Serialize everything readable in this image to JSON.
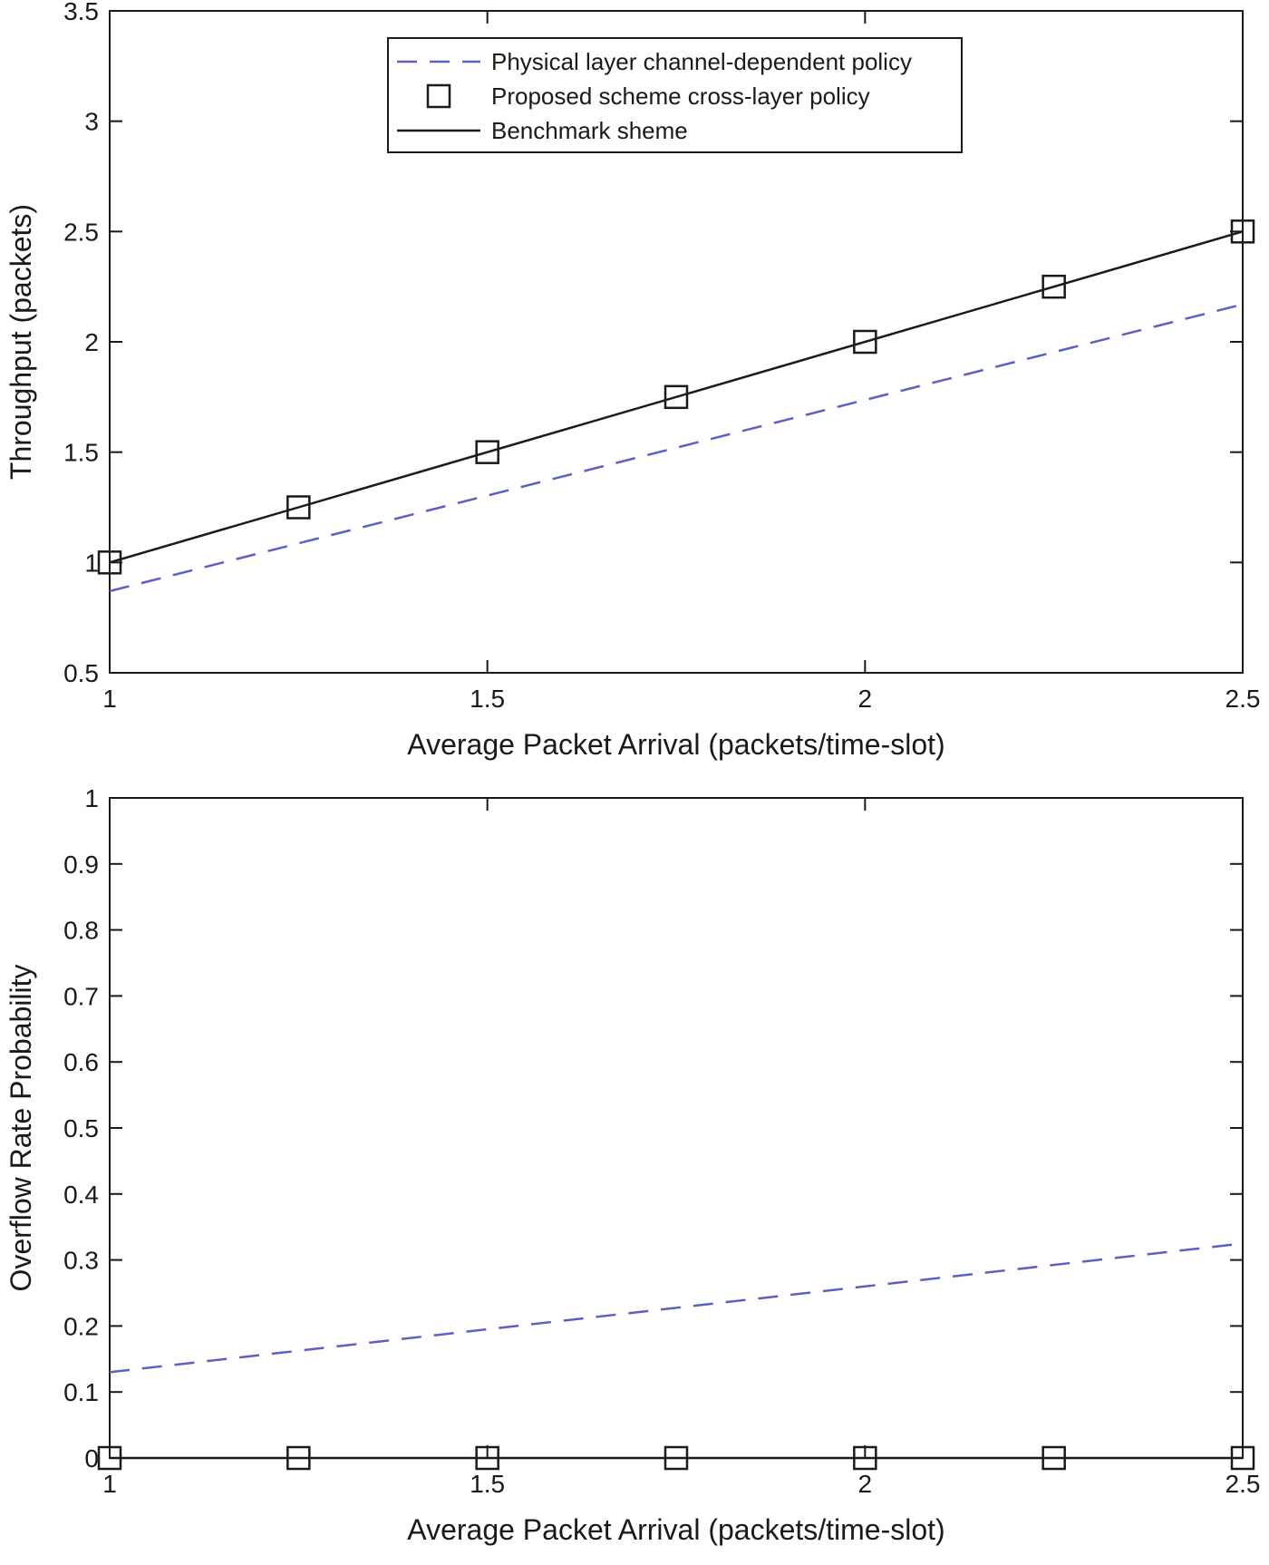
{
  "chart_data": [
    {
      "type": "line",
      "xlabel": "Average Packet Arrival (packets/time-slot)",
      "ylabel": "Throughput (packets)",
      "xlim": [
        1,
        2.5
      ],
      "ylim": [
        0.5,
        3.5
      ],
      "xticks": [
        1,
        1.5,
        2,
        2.5
      ],
      "xtick_labels": [
        "1",
        "1.5",
        "2",
        "2.5"
      ],
      "yticks": [
        0.5,
        1,
        1.5,
        2,
        2.5,
        3,
        3.5
      ],
      "ytick_labels": [
        "0.5",
        "1",
        "1.5",
        "2",
        "2.5",
        "3",
        "3.5"
      ],
      "grid": false,
      "legend_position": "top-center",
      "series": [
        {
          "name": "Physical layer channel-dependent policy",
          "style": "dashed",
          "color": "#5b5fc7",
          "x": [
            1,
            2.5
          ],
          "y": [
            0.87,
            2.17
          ]
        },
        {
          "name": "Proposed scheme cross-layer policy",
          "style": "marker-square",
          "color": "#1a1a1a",
          "x": [
            1,
            1.25,
            1.5,
            1.75,
            2,
            2.25,
            2.5
          ],
          "y": [
            1,
            1.25,
            1.5,
            1.75,
            2,
            2.25,
            2.5
          ]
        },
        {
          "name": "Benchmark sheme",
          "style": "solid",
          "color": "#1a1a1a",
          "x": [
            1,
            2.5
          ],
          "y": [
            1,
            2.5
          ]
        }
      ]
    },
    {
      "type": "line",
      "xlabel": "Average Packet Arrival (packets/time-slot)",
      "ylabel": "Overflow Rate Probability",
      "xlim": [
        1,
        2.5
      ],
      "ylim": [
        0,
        1
      ],
      "xticks": [
        1,
        1.5,
        2,
        2.5
      ],
      "xtick_labels": [
        "1",
        "1.5",
        "2",
        "2.5"
      ],
      "yticks": [
        0,
        0.1,
        0.2,
        0.3,
        0.4,
        0.5,
        0.6,
        0.7,
        0.8,
        0.9,
        1
      ],
      "ytick_labels": [
        "0",
        "0.1",
        "0.2",
        "0.3",
        "0.4",
        "0.5",
        "0.6",
        "0.7",
        "0.8",
        "0.9",
        "1"
      ],
      "grid": false,
      "series": [
        {
          "name": "Physical layer channel-dependent policy",
          "style": "dashed",
          "color": "#5b5fc7",
          "x": [
            1,
            2.5
          ],
          "y": [
            0.13,
            0.325
          ]
        },
        {
          "name": "Proposed scheme cross-layer policy",
          "style": "marker-square",
          "color": "#1a1a1a",
          "x": [
            1,
            1.25,
            1.5,
            1.75,
            2,
            2.25,
            2.5
          ],
          "y": [
            0,
            0,
            0,
            0,
            0,
            0,
            0
          ]
        },
        {
          "name": "Benchmark sheme",
          "style": "solid",
          "color": "#1a1a1a",
          "x": [
            1,
            2.5
          ],
          "y": [
            0,
            0
          ]
        }
      ]
    }
  ]
}
